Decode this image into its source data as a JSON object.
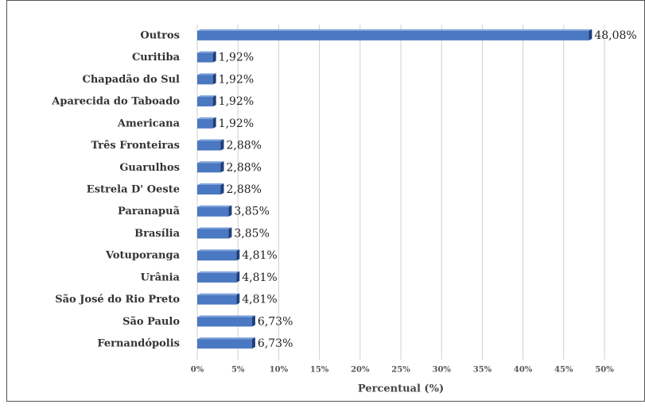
{
  "chart_data": {
    "type": "bar",
    "orientation": "horizontal",
    "categories": [
      "Outros",
      "Curitiba",
      "Chapadão do Sul",
      "Aparecida do Taboado",
      "Americana",
      "Três Fronteiras",
      "Guarulhos",
      "Estrela D' Oeste",
      "Paranapuã",
      "Brasília",
      "Votuporanga",
      "Urânia",
      "São José do Rio Preto",
      "São Paulo",
      "Fernandópolis"
    ],
    "values": [
      48.08,
      1.92,
      1.92,
      1.92,
      1.92,
      2.88,
      2.88,
      2.88,
      3.85,
      3.85,
      4.81,
      4.81,
      4.81,
      6.73,
      6.73
    ],
    "value_labels": [
      "48,08%",
      "1,92%",
      "1,92%",
      "1,92%",
      "1,92%",
      "2,88%",
      "2,88%",
      "2,88%",
      "3,85%",
      "3,85%",
      "4,81%",
      "4,81%",
      "4,81%",
      "6,73%",
      "6,73%"
    ],
    "color": "#4a78c2",
    "xlim": [
      0,
      50
    ],
    "xticks": [
      {
        "value": 0,
        "label": "0%"
      },
      {
        "value": 5,
        "label": "5%"
      },
      {
        "value": 10,
        "label": "10%"
      },
      {
        "value": 15,
        "label": "15%"
      },
      {
        "value": 20,
        "label": "20%"
      },
      {
        "value": 25,
        "label": "25%"
      },
      {
        "value": 30,
        "label": "30%"
      },
      {
        "value": 35,
        "label": "35%"
      },
      {
        "value": 40,
        "label": "40%"
      },
      {
        "value": 45,
        "label": "45%"
      },
      {
        "value": 50,
        "label": "50%"
      }
    ],
    "xlabel": "Percentual (%)",
    "grid": true
  }
}
